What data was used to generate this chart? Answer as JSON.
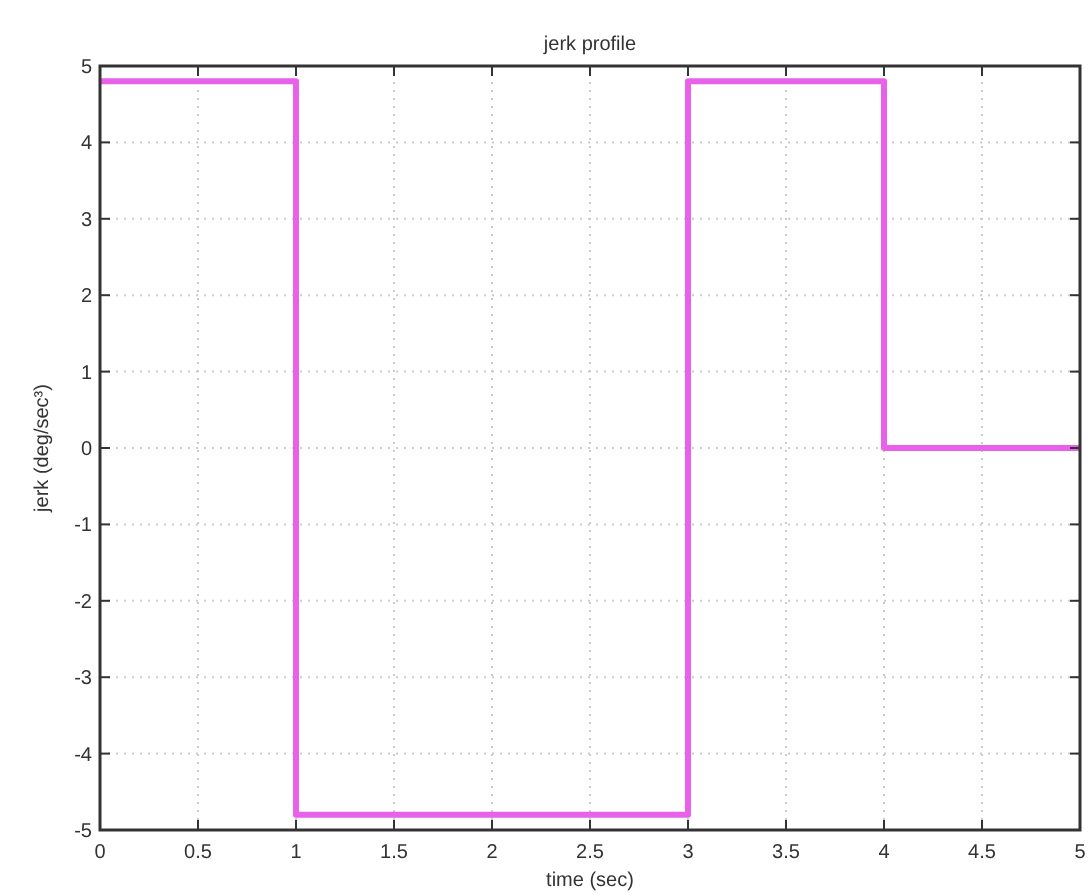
{
  "chart_data": {
    "type": "step",
    "title": "jerk profile",
    "xlabel": "time (sec)",
    "ylabel": "jerk (deg/sec³)",
    "x": [
      0,
      1,
      3,
      4,
      5
    ],
    "series": [
      {
        "color": "#e861e8",
        "values": [
          4.8,
          -4.8,
          4.8,
          0,
          0
        ]
      }
    ],
    "xlim": [
      0,
      5
    ],
    "xticks": [
      0,
      0.5,
      1,
      1.5,
      2,
      2.5,
      3,
      3.5,
      4,
      4.5,
      5
    ],
    "ylim": [
      -5,
      5
    ],
    "yticks": [
      -5,
      -4,
      -3,
      -2,
      -1,
      0,
      1,
      2,
      3,
      4,
      5
    ],
    "grid": true,
    "line_style": "solid",
    "marker": "none"
  }
}
